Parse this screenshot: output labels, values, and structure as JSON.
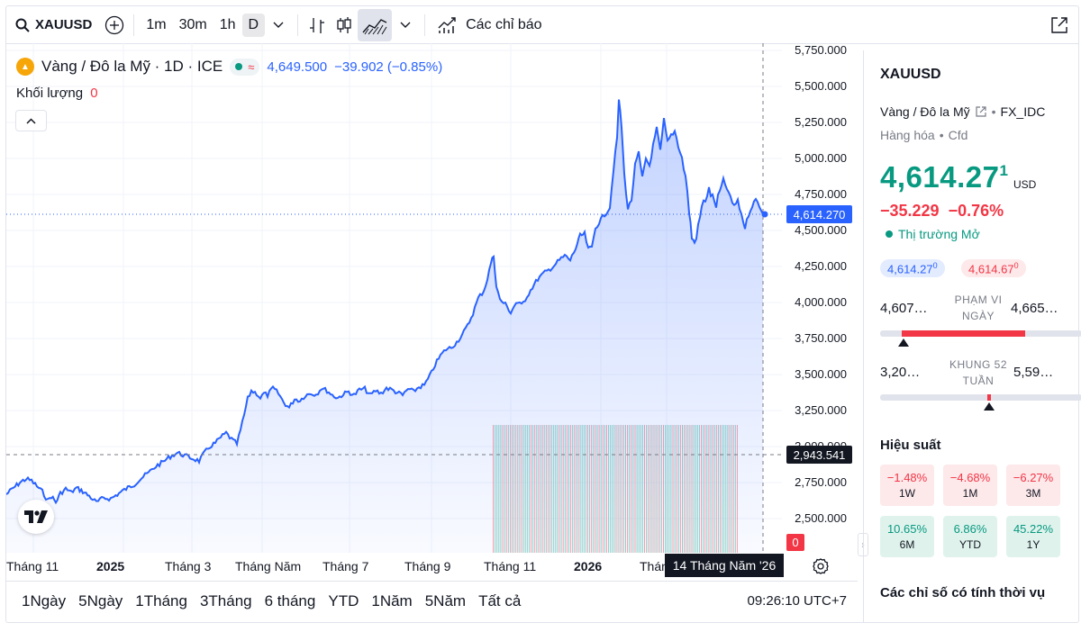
{
  "toolbar": {
    "symbol": "XAUUSD",
    "intervals": [
      "1m",
      "30m",
      "1h",
      "D"
    ],
    "indicators_label": "Các chỉ báo"
  },
  "legend": {
    "title": "Vàng / Đô la Mỹ · 1D · ICE",
    "price": "4,649.500",
    "change": "−39.902 (−0.85%)",
    "volume_label": "Khối lượng",
    "volume_value": "0"
  },
  "price_axis": {
    "ticks": [
      "5,750.000",
      "5,500.000",
      "5,250.000",
      "5,000.000",
      "4,750.000",
      "4,500.000",
      "4,250.000",
      "4,000.000",
      "3,750.000",
      "3,500.000",
      "3,250.000",
      "3,000.000",
      "2,750.000",
      "2,500.000"
    ],
    "last_price_tag": "4,614.270",
    "crosshair_price_tag": "2,943.541",
    "volume_tag": "0"
  },
  "time_axis": {
    "ticks": [
      "Tháng 11",
      "2025",
      "Tháng 3",
      "Tháng Năm",
      "Tháng 7",
      "Tháng 9",
      "Tháng 11",
      "2026",
      "Thán"
    ],
    "crosshair_date": "14 Tháng Năm '26"
  },
  "range_bar": {
    "ranges": [
      "1Ngày",
      "5Ngày",
      "1Tháng",
      "3Tháng",
      "6 tháng",
      "YTD",
      "1Năm",
      "5Năm",
      "Tất cả"
    ],
    "clock": "09:26:10 UTC+7"
  },
  "side_panel": {
    "symbol": "XAUUSD",
    "description": "Vàng / Đô la Mỹ",
    "source": "FX_IDC",
    "category": "Hàng hóa",
    "type": "Cfd",
    "price": "4,614.27",
    "price_sup": "1",
    "currency": "USD",
    "change": "−35.229",
    "change_pct": "−0.76%",
    "market_status": "Thị trường Mở",
    "bid": "4,614.27",
    "bid_sup": "0",
    "ask": "4,614.67",
    "ask_sup": "0",
    "day_low": "4,607…",
    "day_high": "4,665…",
    "day_range_label_1": "PHẠM VI",
    "day_range_label_2": "NGÀY",
    "week52_low": "3,20…",
    "week52_high": "5,59…",
    "week52_label_1": "KHUNG 52",
    "week52_label_2": "TUẦN",
    "performance_title": "Hiệu suất",
    "performance": [
      {
        "value": "−1.48%",
        "label": "1W"
      },
      {
        "value": "−4.68%",
        "label": "1M"
      },
      {
        "value": "−6.27%",
        "label": "3M"
      },
      {
        "value": "10.65%",
        "label": "6M"
      },
      {
        "value": "6.86%",
        "label": "YTD"
      },
      {
        "value": "45.22%",
        "label": "1Y"
      }
    ],
    "seasonal_title": "Các chỉ số có tính thời vụ"
  },
  "colors": {
    "line": "#2962ff",
    "up": "#089981",
    "down": "#f23645"
  }
}
